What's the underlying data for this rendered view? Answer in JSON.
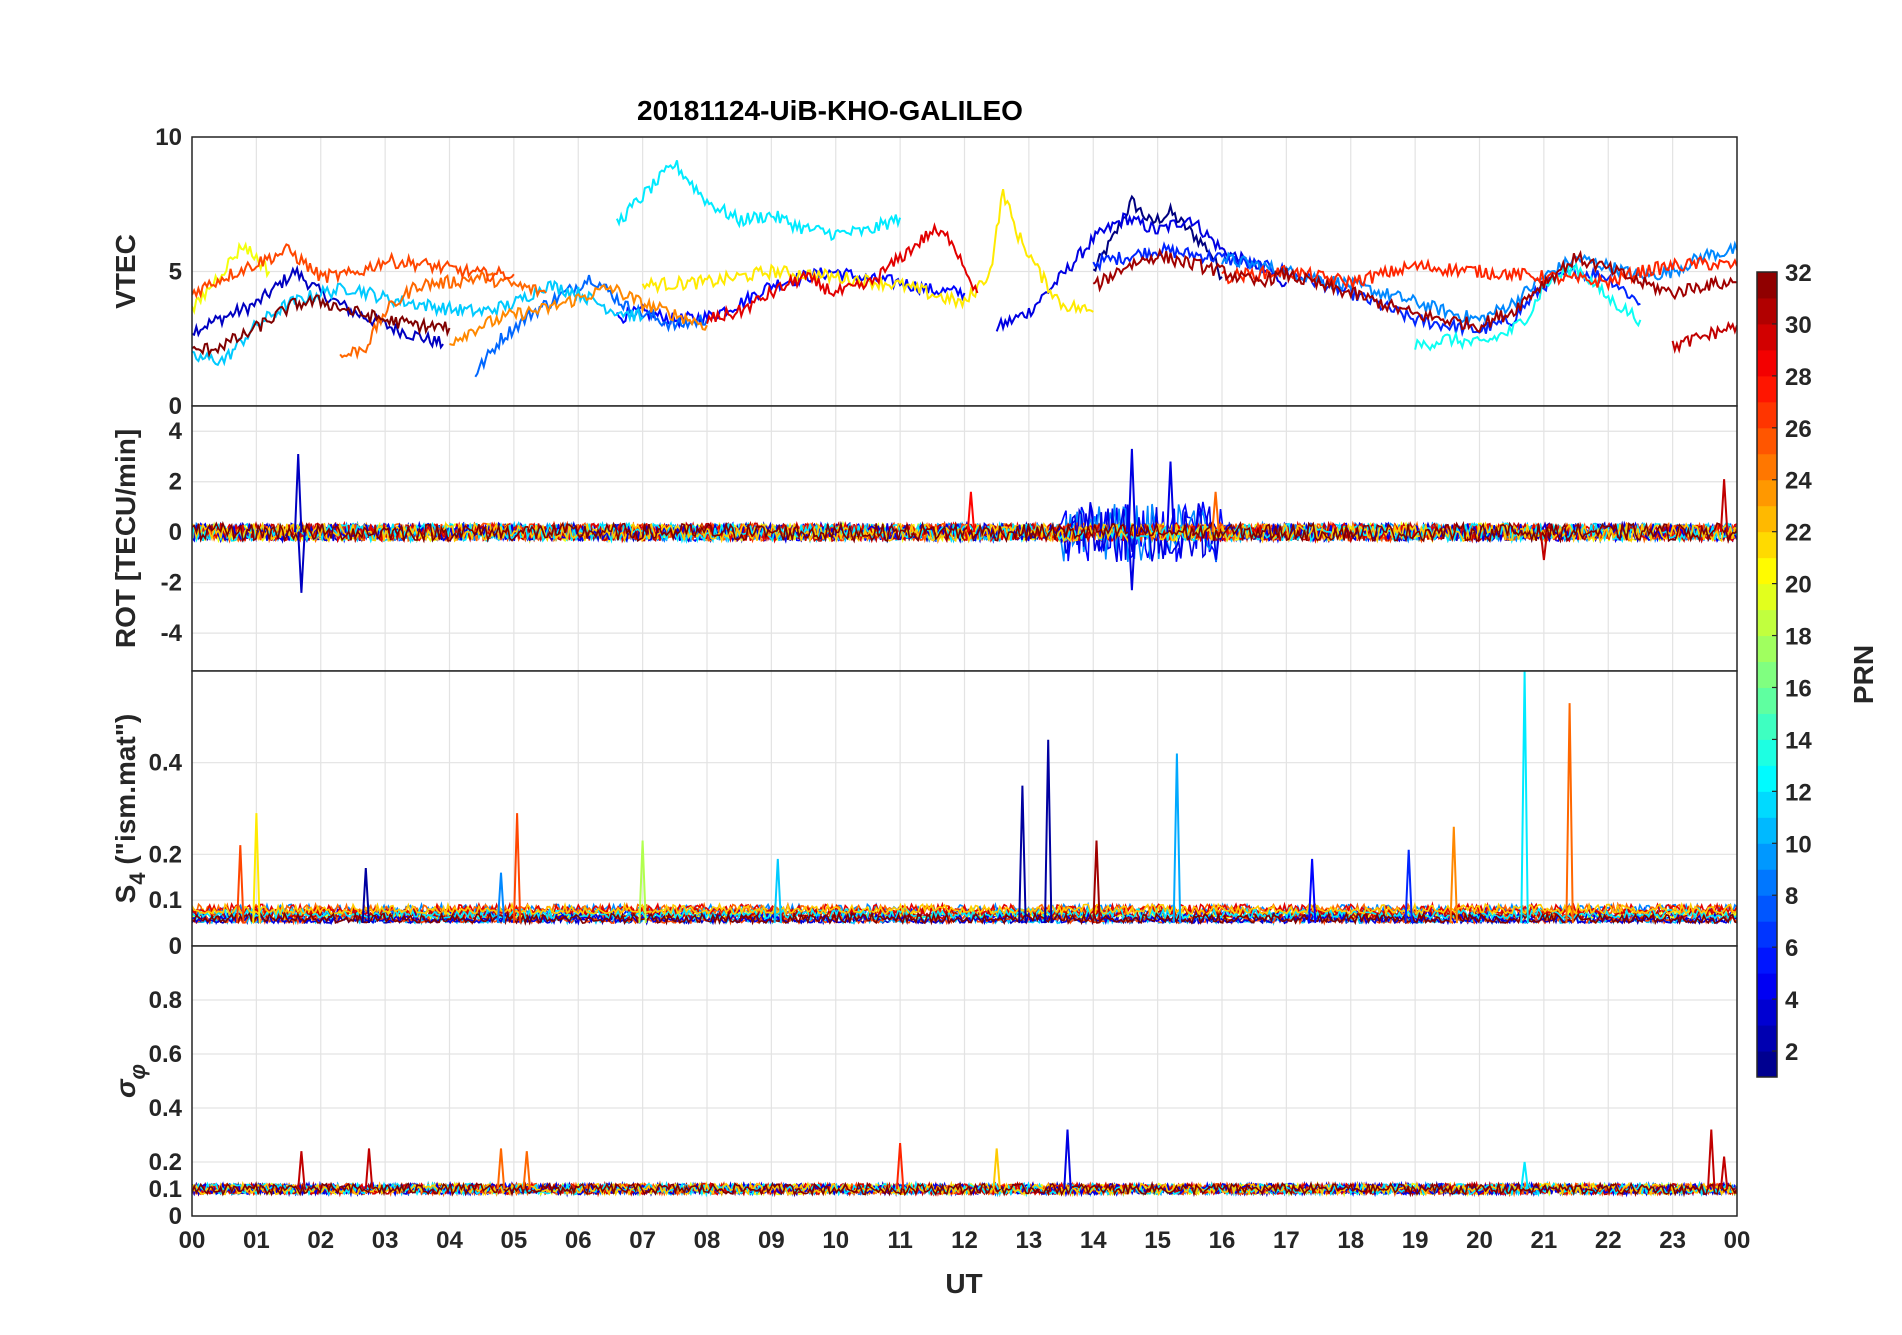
{
  "chart_data": {
    "type": "line",
    "title": "20181124-UiB-KHO-GALILEO",
    "xlabel": "UT",
    "x_tick_labels": [
      "00",
      "01",
      "02",
      "03",
      "04",
      "05",
      "06",
      "07",
      "08",
      "09",
      "10",
      "11",
      "12",
      "13",
      "14",
      "15",
      "16",
      "17",
      "18",
      "19",
      "20",
      "21",
      "22",
      "23",
      "00"
    ],
    "xlim_hours": [
      0,
      24
    ],
    "grid": true,
    "colormap": "jet",
    "colorbar": {
      "label": "PRN",
      "range": [
        1,
        32
      ],
      "tick_labels": [
        "2",
        "4",
        "6",
        "8",
        "10",
        "12",
        "14",
        "16",
        "18",
        "20",
        "22",
        "24",
        "26",
        "28",
        "30",
        "32"
      ],
      "placement": "right"
    },
    "panels": [
      {
        "name": "vtec",
        "ylabel": "VTEC",
        "ylim": [
          0,
          10
        ],
        "y_ticks": [
          0,
          5,
          10
        ],
        "y_tick_labels": [
          "0",
          "5",
          "10"
        ],
        "series": [
          {
            "prn": 1,
            "x": [
              14.0,
              14.3,
              14.6,
              14.9,
              15.2,
              15.5,
              15.8,
              16.0
            ],
            "y": [
              5.0,
              6.2,
              7.6,
              6.8,
              7.2,
              6.5,
              5.8,
              4.8
            ]
          },
          {
            "prn": 3,
            "x": [
              0.0,
              0.5,
              1.0,
              1.6,
              2.0,
              2.5,
              3.0,
              3.5,
              3.9
            ],
            "y": [
              2.8,
              3.3,
              3.8,
              5.0,
              4.2,
              3.5,
              3.0,
              2.6,
              2.3
            ]
          },
          {
            "prn": 4,
            "x": [
              12.5,
              13.0,
              13.5,
              14.0,
              14.5,
              15.0,
              15.5,
              16.0,
              16.5,
              17.0
            ],
            "y": [
              2.9,
              3.5,
              4.8,
              6.2,
              7.0,
              6.5,
              7.0,
              5.8,
              5.2,
              4.6
            ]
          },
          {
            "prn": 5,
            "x": [
              6.6,
              7.0,
              7.5,
              8.0,
              8.5,
              9.0,
              9.5,
              10.0,
              10.5,
              11.0,
              11.5,
              12.0
            ],
            "y": [
              3.3,
              3.5,
              3.2,
              3.3,
              3.8,
              4.5,
              4.8,
              5.0,
              4.7,
              4.6,
              4.3,
              4.2
            ]
          },
          {
            "prn": 6,
            "x": [
              14.0,
              15.0,
              16.0,
              17.0,
              18.0,
              19.0,
              19.5,
              20.0,
              20.5,
              21.0,
              21.5,
              22.0,
              22.5
            ],
            "y": [
              5.3,
              5.8,
              5.5,
              5.0,
              4.2,
              3.2,
              3.0,
              2.8,
              3.2,
              4.5,
              5.0,
              4.8,
              3.8
            ]
          },
          {
            "prn": 8,
            "x": [
              4.4,
              4.8,
              5.3,
              5.8,
              6.2,
              6.8,
              7.5,
              8.0
            ],
            "y": [
              1.2,
              2.5,
              3.5,
              4.2,
              4.8,
              3.6,
              3.0,
              3.2
            ]
          },
          {
            "prn": 9,
            "x": [
              16.0,
              17.0,
              18.0,
              18.8,
              19.5,
              20.0,
              20.5,
              21.0,
              21.5,
              22.0,
              22.5,
              23.0,
              23.5,
              24.0
            ],
            "y": [
              5.5,
              5.0,
              4.5,
              4.0,
              3.5,
              3.2,
              3.8,
              4.8,
              5.5,
              5.2,
              4.8,
              5.0,
              5.6,
              5.8
            ]
          },
          {
            "prn": 11,
            "x": [
              0.0,
              0.5,
              1.0,
              1.5,
              2.0,
              2.5,
              3.0,
              3.5,
              4.0,
              4.5,
              5.0,
              5.5,
              6.0,
              6.5,
              7.0
            ],
            "y": [
              1.8,
              1.7,
              3.0,
              3.8,
              4.2,
              4.4,
              4.0,
              3.8,
              3.6,
              3.5,
              3.8,
              4.5,
              4.2,
              3.6,
              3.3
            ]
          },
          {
            "prn": 12,
            "x": [
              6.6,
              7.0,
              7.5,
              8.0,
              8.5,
              9.0,
              9.5,
              10.0,
              10.5,
              11.0
            ],
            "y": [
              6.8,
              7.8,
              9.0,
              7.6,
              6.9,
              7.1,
              6.6,
              6.4,
              6.5,
              7.0
            ]
          },
          {
            "prn": 13,
            "x": [
              19.0,
              19.5,
              20.0,
              20.5,
              20.8,
              21.0,
              21.5,
              22.0,
              22.5
            ],
            "y": [
              2.2,
              2.5,
              2.3,
              2.8,
              3.5,
              4.5,
              5.2,
              4.0,
              3.2
            ]
          },
          {
            "prn": 20,
            "x": [
              0.0,
              0.3,
              0.8,
              1.2
            ],
            "y": [
              3.5,
              4.5,
              6.0,
              5.0
            ]
          },
          {
            "prn": 21,
            "x": [
              7.0,
              8.0,
              9.0,
              10.0,
              11.0,
              12.0,
              12.4,
              12.6,
              12.8,
              13.2,
              13.5,
              14.0
            ],
            "y": [
              4.5,
              4.6,
              5.0,
              4.8,
              4.5,
              3.8,
              5.0,
              8.0,
              6.5,
              4.8,
              3.8,
              3.5
            ]
          },
          {
            "prn": 24,
            "x": [
              4.0,
              4.5,
              5.0,
              5.5,
              6.0,
              6.5,
              7.0,
              7.5,
              8.0
            ],
            "y": [
              2.4,
              3.0,
              3.4,
              3.6,
              4.0,
              4.4,
              3.8,
              3.4,
              3.0
            ]
          },
          {
            "prn": 25,
            "x": [
              2.3,
              2.7,
              3.0,
              3.5,
              4.0,
              4.5,
              5.0,
              5.5
            ],
            "y": [
              1.8,
              2.2,
              3.5,
              4.5,
              4.6,
              4.8,
              4.5,
              4.2
            ]
          },
          {
            "prn": 26,
            "x": [
              0.0,
              0.5,
              1.0,
              1.5,
              2.0,
              2.5,
              3.0,
              3.5,
              4.0,
              4.5,
              5.0
            ],
            "y": [
              4.2,
              4.8,
              5.3,
              5.8,
              4.8,
              4.9,
              5.4,
              5.3,
              5.1,
              4.9,
              4.9
            ]
          },
          {
            "prn": 27,
            "x": [
              16.0,
              17.0,
              18.0,
              19.0,
              20.0,
              21.0,
              22.0,
              22.5,
              23.0,
              23.5,
              24.0
            ],
            "y": [
              4.8,
              5.0,
              4.6,
              5.2,
              5.0,
              4.8,
              4.6,
              5.0,
              5.2,
              5.3,
              5.2
            ]
          },
          {
            "prn": 29,
            "x": [
              8.0,
              8.5,
              9.0,
              9.5,
              10.0,
              10.5,
              11.0,
              11.5,
              11.8,
              12.2
            ],
            "y": [
              3.2,
              3.5,
              4.2,
              4.8,
              4.2,
              4.5,
              5.5,
              6.5,
              6.2,
              4.2
            ]
          },
          {
            "prn": 30,
            "x": [
              23.0,
              23.5,
              24.0
            ],
            "y": [
              2.2,
              2.6,
              3.0
            ]
          },
          {
            "prn": 32,
            "x": [
              0.0,
              0.4,
              0.8,
              1.2,
              1.6,
              2.0,
              2.5,
              3.0,
              3.5,
              4.0
            ],
            "y": [
              2.0,
              2.2,
              2.6,
              3.2,
              3.8,
              3.9,
              3.5,
              3.2,
              3.0,
              2.9
            ]
          },
          {
            "prn": 31,
            "x": [
              14.0,
              14.5,
              15.0,
              15.5,
              16.0,
              16.5,
              17.0,
              17.5,
              18.0,
              18.5,
              19.0,
              19.5,
              20.0,
              20.5,
              21.0,
              21.5,
              22.0,
              22.5,
              23.0,
              23.5,
              24.0
            ],
            "y": [
              4.4,
              5.2,
              5.6,
              5.3,
              5.0,
              4.6,
              4.9,
              4.5,
              4.2,
              3.8,
              3.4,
              3.2,
              3.0,
              3.5,
              4.6,
              5.5,
              5.1,
              4.6,
              4.2,
              4.5,
              4.6
            ]
          }
        ]
      },
      {
        "name": "rot",
        "ylabel": "ROT [TECU/min]",
        "ylim": [
          -5.5,
          5.0
        ],
        "y_ticks": [
          -4,
          -2,
          0,
          2,
          4
        ],
        "y_tick_labels": [
          "-4",
          "-2",
          "0",
          "2",
          "4"
        ],
        "series_note": "noise around 0 for all PRNs",
        "spikes": [
          {
            "prn": 3,
            "x": 1.65,
            "y": 3.1
          },
          {
            "prn": 3,
            "x": 1.7,
            "y": -2.4
          },
          {
            "prn": 4,
            "x": 14.6,
            "y": 3.3
          },
          {
            "prn": 4,
            "x": 14.6,
            "y": -2.3
          },
          {
            "prn": 4,
            "x": 15.2,
            "y": 2.8
          },
          {
            "prn": 25,
            "x": 15.9,
            "y": 1.6
          },
          {
            "prn": 30,
            "x": 23.8,
            "y": 2.1
          },
          {
            "prn": 28,
            "x": 12.1,
            "y": 1.6
          },
          {
            "prn": 30,
            "x": 21.0,
            "y": -1.1
          }
        ]
      },
      {
        "name": "s4",
        "ylabel": "S4 (\"ism.mat\")",
        "ylabel_main": "S",
        "ylabel_sub": "4",
        "ylabel_rest": " (\"ism.mat\")",
        "ylim": [
          0,
          0.6
        ],
        "y_ticks": [
          0,
          0.1,
          0.2,
          0.4
        ],
        "y_tick_labels": [
          "0",
          "0.1",
          "0.2",
          "0.4"
        ],
        "baseline_level": 0.05,
        "spikes": [
          {
            "prn": 21,
            "x": 1.0,
            "y": 0.29
          },
          {
            "prn": 26,
            "x": 0.75,
            "y": 0.22
          },
          {
            "prn": 26,
            "x": 5.05,
            "y": 0.29
          },
          {
            "prn": 9,
            "x": 4.8,
            "y": 0.16
          },
          {
            "prn": 18,
            "x": 7.0,
            "y": 0.23
          },
          {
            "prn": 11,
            "x": 9.1,
            "y": 0.19
          },
          {
            "prn": 2,
            "x": 12.9,
            "y": 0.35
          },
          {
            "prn": 2,
            "x": 13.3,
            "y": 0.45
          },
          {
            "prn": 31,
            "x": 14.05,
            "y": 0.23
          },
          {
            "prn": 10,
            "x": 15.3,
            "y": 0.42
          },
          {
            "prn": 5,
            "x": 17.4,
            "y": 0.19
          },
          {
            "prn": 6,
            "x": 18.9,
            "y": 0.21
          },
          {
            "prn": 24,
            "x": 19.6,
            "y": 0.26
          },
          {
            "prn": 12,
            "x": 20.7,
            "y": 0.6
          },
          {
            "prn": 25,
            "x": 21.4,
            "y": 0.53
          },
          {
            "prn": 2,
            "x": 2.7,
            "y": 0.17
          }
        ]
      },
      {
        "name": "sigma_phi",
        "ylabel": "σ φ",
        "ylabel_main": "σ",
        "ylabel_sub": "φ",
        "ylim": [
          0,
          1.0
        ],
        "y_ticks": [
          0,
          0.1,
          0.2,
          0.4,
          0.6,
          0.8
        ],
        "y_tick_labels": [
          "0",
          "0.1",
          "0.2",
          "0.4",
          "0.6",
          "0.8"
        ],
        "baseline_level": 0.1,
        "spikes": [
          {
            "prn": 30,
            "x": 1.7,
            "y": 0.24
          },
          {
            "prn": 30,
            "x": 2.75,
            "y": 0.25
          },
          {
            "prn": 25,
            "x": 4.8,
            "y": 0.25
          },
          {
            "prn": 25,
            "x": 5.2,
            "y": 0.24
          },
          {
            "prn": 22,
            "x": 12.5,
            "y": 0.25
          },
          {
            "prn": 4,
            "x": 13.6,
            "y": 0.32
          },
          {
            "prn": 30,
            "x": 23.6,
            "y": 0.32
          },
          {
            "prn": 30,
            "x": 23.8,
            "y": 0.22
          },
          {
            "prn": 12,
            "x": 20.7,
            "y": 0.2
          },
          {
            "prn": 27,
            "x": 11.0,
            "y": 0.27
          }
        ]
      }
    ]
  }
}
